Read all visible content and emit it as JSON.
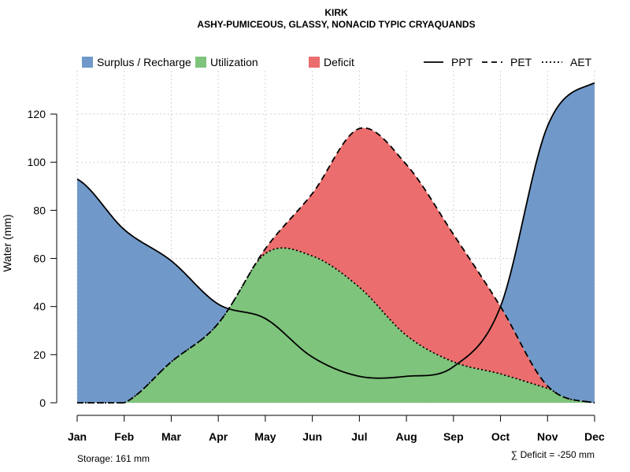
{
  "chart_data": {
    "type": "area",
    "title": "KIRK",
    "subtitle": "ASHY-PUMICEOUS, GLASSY, NONACID TYPIC CRYAQUANDS",
    "ylabel": "Water (mm)",
    "xlabel": "",
    "categories": [
      "Jan",
      "Feb",
      "Mar",
      "Apr",
      "May",
      "Jun",
      "Jul",
      "Aug",
      "Sep",
      "Oct",
      "Nov",
      "Dec"
    ],
    "ylim": [
      0,
      138
    ],
    "yticks": [
      0,
      20,
      40,
      60,
      80,
      100,
      120
    ],
    "grid": true,
    "series": [
      {
        "name": "PPT",
        "style": "solid",
        "values": [
          93,
          72,
          59,
          41,
          35,
          19,
          11,
          11,
          15,
          40,
          115,
          133
        ]
      },
      {
        "name": "PET",
        "style": "dashed",
        "values": [
          0,
          0,
          17,
          33,
          64,
          87,
          114,
          99,
          70,
          40,
          7,
          0
        ]
      },
      {
        "name": "AET",
        "style": "dotted",
        "values": [
          0,
          0,
          17,
          33,
          62,
          61,
          48,
          28,
          17,
          12,
          6,
          0
        ]
      }
    ],
    "areas": [
      {
        "name": "Surplus / Recharge",
        "color": "#7099c9"
      },
      {
        "name": "Utilization",
        "color": "#7ec47c"
      },
      {
        "name": "Deficit",
        "color": "#eb6d6d"
      }
    ],
    "legend_position": "top",
    "annotations": {
      "storage": "Storage: 161 mm",
      "deficit_sum": "∑ Deficit = -250 mm"
    }
  },
  "colors": {
    "surplus": "#7099c9",
    "utilization": "#7ec47c",
    "deficit": "#eb6d6d",
    "line": "#000000"
  }
}
